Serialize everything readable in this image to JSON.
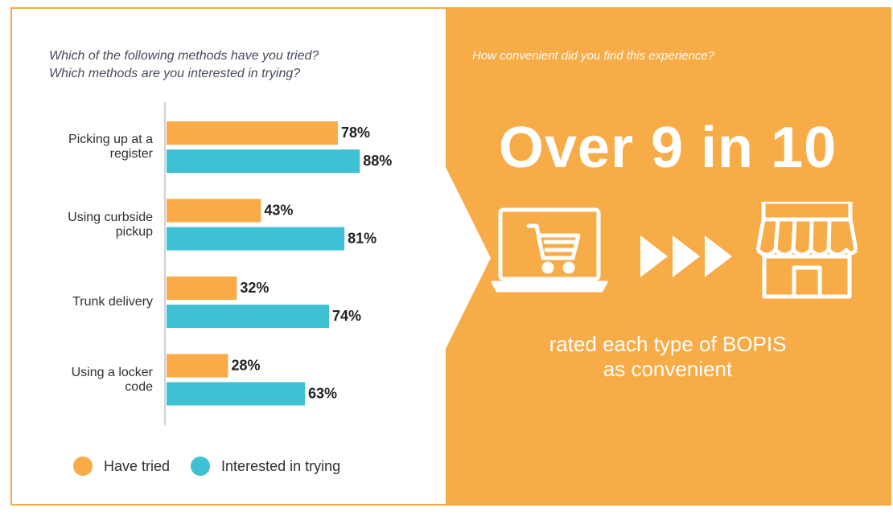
{
  "left": {
    "question_line1": "Which of the following methods have you tried?",
    "question_line2": "Which methods are you interested in trying?"
  },
  "right": {
    "question": "How convenient did you find this experience?",
    "headline": "Over 9 in 10",
    "caption_line1": "rated each type of BOPIS",
    "caption_line2": "as convenient",
    "icons": [
      "laptop-cart-icon",
      "triple-arrow-icon",
      "storefront-icon"
    ]
  },
  "colors": {
    "tried": "#f8ab47",
    "interested": "#3ec1d2",
    "panel": "#f8ac48"
  },
  "chart_data": {
    "type": "bar",
    "orientation": "horizontal",
    "categories": [
      "Picking up at a\nregister",
      "Using curbside\npickup",
      "Trunk delivery",
      "Using a locker\ncode"
    ],
    "series": [
      {
        "name": "Have tried",
        "values": [
          78,
          43,
          32,
          28
        ],
        "labels": [
          "78%",
          "43%",
          "32%",
          "28%"
        ]
      },
      {
        "name": "Interested in trying",
        "values": [
          88,
          81,
          74,
          63
        ],
        "labels": [
          "88%",
          "81%",
          "74%",
          "63%"
        ]
      }
    ],
    "legend": "bottom",
    "xlim": [
      0,
      100
    ]
  }
}
